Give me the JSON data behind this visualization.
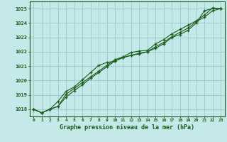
{
  "title": "Graphe pression niveau de la mer (hPa)",
  "xlabel_hours": [
    0,
    1,
    2,
    3,
    4,
    5,
    6,
    7,
    8,
    9,
    10,
    11,
    12,
    13,
    14,
    15,
    16,
    17,
    18,
    19,
    20,
    21,
    22,
    23
  ],
  "ylim": [
    1017.5,
    1025.5
  ],
  "yticks": [
    1018,
    1019,
    1020,
    1021,
    1022,
    1023,
    1024,
    1025
  ],
  "bg_color": "#c5e8e8",
  "grid_color": "#9ecece",
  "line_color": "#1a5c1a",
  "line1": [
    1018.0,
    1017.75,
    1018.0,
    1018.2,
    1018.85,
    1019.3,
    1019.7,
    1020.15,
    1020.55,
    1020.95,
    1021.35,
    1021.6,
    1021.75,
    1021.9,
    1022.0,
    1022.25,
    1022.55,
    1023.0,
    1023.2,
    1023.5,
    1024.0,
    1024.85,
    1025.0,
    1025.0
  ],
  "line2": [
    1018.0,
    1017.75,
    1018.0,
    1018.55,
    1019.25,
    1019.55,
    1020.05,
    1020.55,
    1021.05,
    1021.25,
    1021.35,
    1021.6,
    1021.75,
    1021.85,
    1022.0,
    1022.35,
    1022.65,
    1023.05,
    1023.35,
    1023.65,
    1024.1,
    1024.4,
    1024.85,
    1025.0
  ],
  "line3": [
    1018.0,
    1017.75,
    1018.0,
    1018.2,
    1019.05,
    1019.45,
    1019.85,
    1020.25,
    1020.65,
    1021.05,
    1021.45,
    1021.65,
    1021.95,
    1022.05,
    1022.1,
    1022.55,
    1022.85,
    1023.25,
    1023.55,
    1023.85,
    1024.15,
    1024.55,
    1025.05,
    1025.0
  ]
}
